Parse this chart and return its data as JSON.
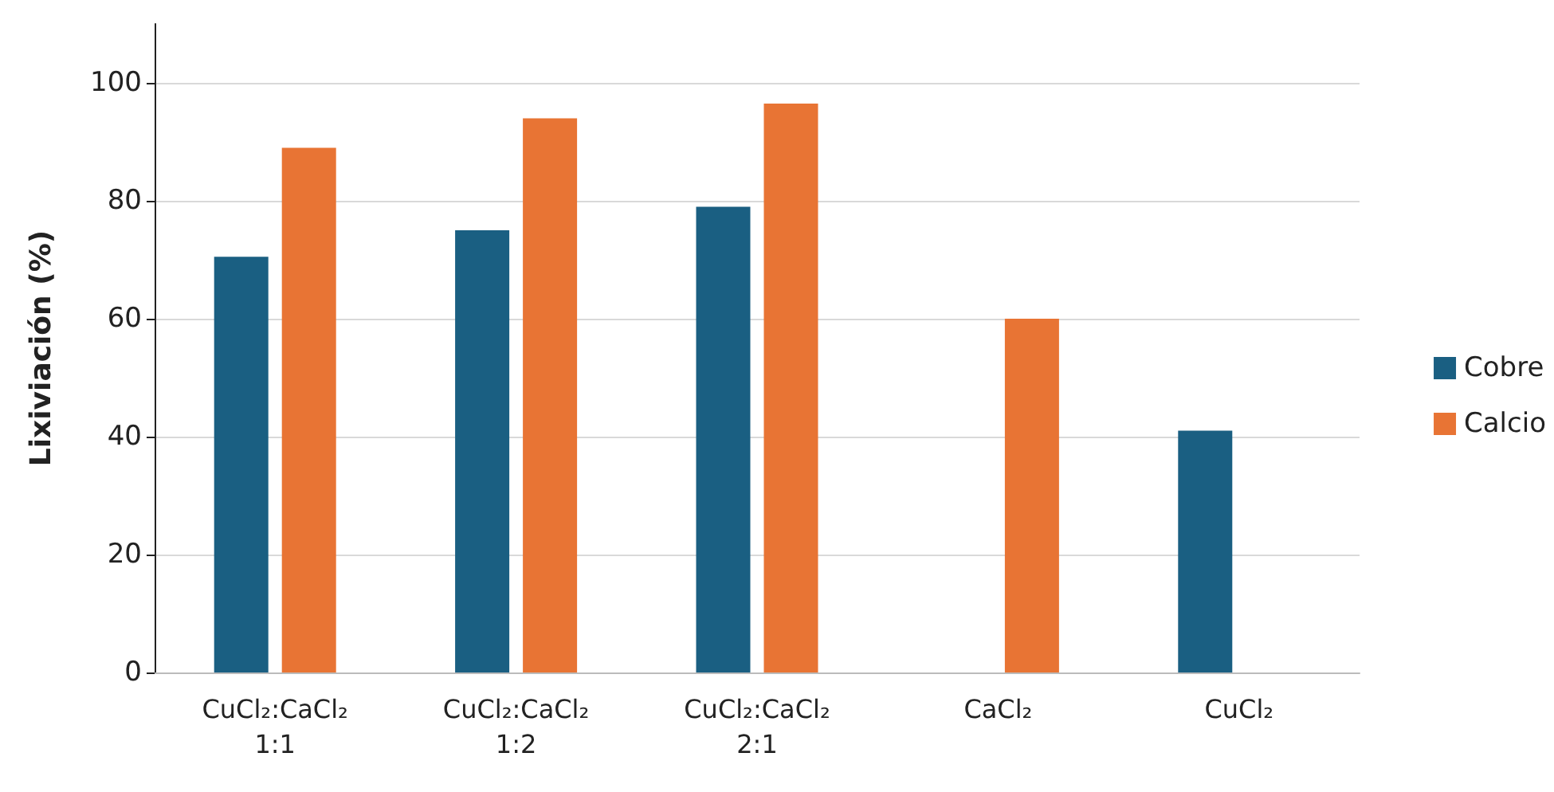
{
  "chart_data": {
    "type": "bar",
    "ylabel": "Lixiviación (%)",
    "categories": [
      "CuCl₂:CaCl₂\n1:1",
      "CuCl₂:CaCl₂\n1:2",
      "CuCl₂:CaCl₂\n2:1",
      "CaCl₂",
      "CuCl₂"
    ],
    "series": [
      {
        "name": "Cobre",
        "color": "#1a5f82",
        "values": [
          70.5,
          75,
          79,
          null,
          41
        ]
      },
      {
        "name": "Calcio",
        "color": "#e87434",
        "values": [
          89,
          94,
          96.5,
          60,
          null
        ]
      }
    ],
    "ylim": [
      0,
      110
    ],
    "yticks": [
      0,
      20,
      40,
      60,
      80,
      100
    ],
    "grid": "y",
    "legend": "right"
  }
}
